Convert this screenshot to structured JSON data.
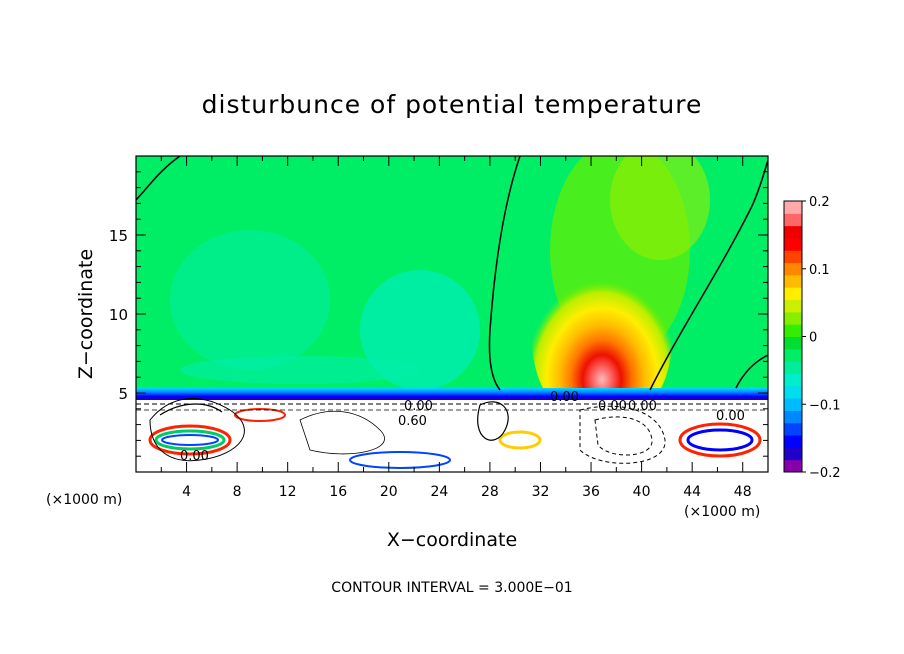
{
  "chart_data": {
    "type": "heatmap",
    "title": "disturbunce of potential temperature",
    "xlabel": "X−coordinate",
    "ylabel": "Z−coordinate",
    "x_unit_left": "(×1000 m)",
    "x_unit_right": "(×1000 m)",
    "xlim": [
      0,
      50
    ],
    "ylim": [
      0,
      20
    ],
    "x_ticks": [
      4,
      8,
      12,
      16,
      20,
      24,
      28,
      32,
      36,
      40,
      44,
      48
    ],
    "y_ticks": [
      5,
      10,
      15
    ],
    "colorbar": {
      "range": [
        -0.2,
        0.2
      ],
      "labels": [
        "0.2",
        "0.1",
        "0",
        "−0.1",
        "−0.2"
      ],
      "label_values": [
        0.2,
        0.1,
        0,
        -0.1,
        -0.2
      ],
      "colors": [
        "#8800aa",
        "#2200cc",
        "#0000ff",
        "#0044ff",
        "#0088ff",
        "#00bbff",
        "#00ddee",
        "#00eecc",
        "#00ee99",
        "#00ee66",
        "#00dd33",
        "#33ee00",
        "#88ee00",
        "#ccee00",
        "#ffee00",
        "#ffbb00",
        "#ff8800",
        "#ff4400",
        "#ff0000",
        "#ee0000",
        "#ff6666",
        "#ffaaaa"
      ]
    },
    "contour_labels": [
      "0.00",
      "0.60",
      "0.00",
      "0.00",
      "0.00",
      "0.00",
      "0.00"
    ],
    "footer": "CONTOUR INTERVAL = 3.000E−01"
  }
}
